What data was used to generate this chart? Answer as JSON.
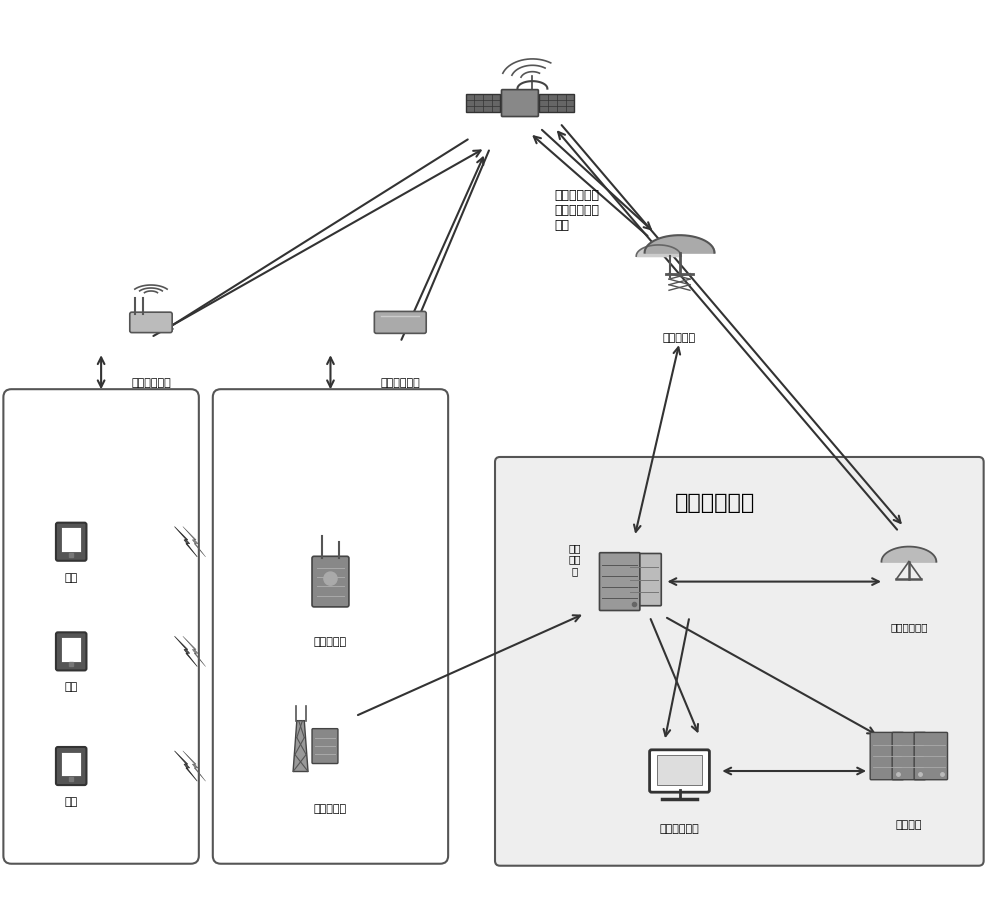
{
  "bg_color": "#ffffff",
  "fig_width": 10.0,
  "fig_height": 9.03,
  "labels": {
    "satellite": "天通、亚星、\n中星、海事卫\n星等",
    "relay1": "卫星转接设备",
    "relay2": "卫星转接设备",
    "gateway": "卫星信关站",
    "cmd_center": "指挥调度中心",
    "comm_server_label": "通信\n服务\n器",
    "satellite_comm": "卫星通信设备",
    "cmd_platform": "指挥调度平台",
    "data_center": "数据中心",
    "terminal1": "终端",
    "terminal2": "终端",
    "terminal3": "终端",
    "portable_bs": "便携式基站",
    "fixed_bs": "固定式基站"
  },
  "colors": {
    "box_edge": "#555555",
    "box_fill": "#f0f0f0",
    "arrow": "#333333",
    "icon_dark": "#555555",
    "icon_mid": "#888888",
    "icon_light": "#bbbbbb",
    "cmd_box_fill": "#e8e8e8",
    "cmd_box_edge": "#555555",
    "text_main": "#000000"
  }
}
